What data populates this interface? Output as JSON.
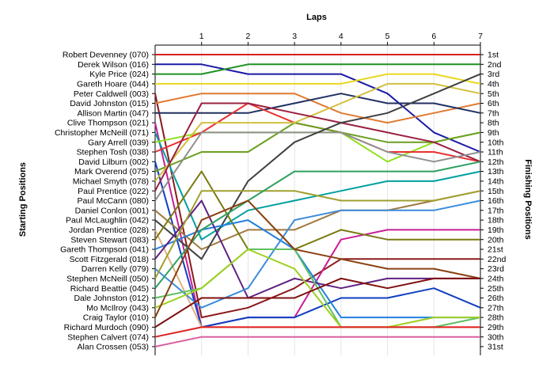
{
  "chart_data": {
    "type": "line",
    "title": "Laps",
    "ylabel_left": "Starting Positions",
    "ylabel_right": "Finishing Positions",
    "x": [
      0,
      1,
      2,
      3,
      4,
      5,
      6,
      7
    ],
    "x_tick_labels": [
      "1",
      "2",
      "3",
      "4",
      "5",
      "6",
      "7"
    ],
    "position_labels": [
      "1st",
      "2nd",
      "3rd",
      "4th",
      "5th",
      "6th",
      "7th",
      "8th",
      "9th",
      "10th",
      "11th",
      "12th",
      "13th",
      "14th",
      "15th",
      "16th",
      "17th",
      "18th",
      "19th",
      "20th",
      "21st",
      "22nd",
      "23rd",
      "24th",
      "25th",
      "26th",
      "27th",
      "28th",
      "29th",
      "30th",
      "31st"
    ],
    "grid": true,
    "series": [
      {
        "name": "Robert Devenney (070)",
        "color": "#d62020",
        "values": [
          1,
          1,
          1,
          1,
          1,
          1,
          1,
          1
        ]
      },
      {
        "name": "Derek Wilson (016)",
        "color": "#1a1aa6",
        "values": [
          2,
          2,
          3,
          3,
          3,
          5,
          9,
          11
        ]
      },
      {
        "name": "Kyle Price (024)",
        "color": "#209020",
        "values": [
          3,
          3,
          2,
          2,
          2,
          2,
          2,
          2
        ]
      },
      {
        "name": "Gareth Hoare (044)",
        "color": "#e8d820",
        "values": [
          4,
          4,
          4,
          4,
          4,
          3,
          3,
          4
        ]
      },
      {
        "name": "Peter Caldwell (003)",
        "color": "#8b1a1a",
        "values": [
          5,
          28,
          27,
          25,
          22,
          22,
          22,
          22
        ]
      },
      {
        "name": "David Johnston (015)",
        "color": "#e07a30",
        "values": [
          6,
          5,
          5,
          5,
          7,
          8,
          7,
          6
        ]
      },
      {
        "name": "Allison Martin (047)",
        "color": "#203060",
        "values": [
          7,
          7,
          7,
          6,
          5,
          6,
          6,
          7
        ]
      },
      {
        "name": "Clive Thompson (021)",
        "color": "#c81e96",
        "values": [
          8,
          29,
          28,
          28,
          20,
          19,
          19,
          19
        ]
      },
      {
        "name": "Christopher McNeill (071)",
        "color": "#00a0a0",
        "values": [
          9,
          20,
          17,
          16,
          15,
          14,
          14,
          13
        ]
      },
      {
        "name": "Gary Arrell (039)",
        "color": "#90e020",
        "values": [
          10,
          9,
          9,
          9,
          9,
          12,
          10,
          9
        ]
      },
      {
        "name": "Stephen Tosh (038)",
        "color": "#e83030",
        "values": [
          11,
          9,
          6,
          8,
          9,
          11,
          11,
          12
        ]
      },
      {
        "name": "David Lilburn (002)",
        "color": "#1040c0",
        "values": [
          12,
          29,
          28,
          28,
          26,
          26,
          25,
          27
        ]
      },
      {
        "name": "Mark Overend (075)",
        "color": "#6aa020",
        "values": [
          13,
          11,
          11,
          8,
          9,
          10,
          10,
          9
        ]
      },
      {
        "name": "Michael Smyth (078)",
        "color": "#d2c040",
        "values": [
          14,
          8,
          8,
          8,
          6,
          4,
          4,
          5
        ]
      },
      {
        "name": "Paul Prentice (022)",
        "color": "#9a2040",
        "values": [
          15,
          6,
          6,
          7,
          8,
          9,
          10,
          12
        ]
      },
      {
        "name": "Paul McCann (080)",
        "color": "#909090",
        "values": [
          16,
          9,
          9,
          9,
          9,
          11,
          12,
          11
        ]
      },
      {
        "name": "Daniel Conlon (001)",
        "color": "#a07a40",
        "values": [
          17,
          21,
          19,
          19,
          17,
          17,
          16,
          15
        ]
      },
      {
        "name": "Paul McLaughlin (042)",
        "color": "#404040",
        "values": [
          18,
          22,
          14,
          10,
          8,
          7,
          5,
          3
        ]
      },
      {
        "name": "Jordan Prentice (028)",
        "color": "#e0b080",
        "values": [
          19,
          29,
          29,
          29,
          29,
          29,
          29,
          29
        ]
      },
      {
        "name": "Steven Stewart (083)",
        "color": "#7a7a10",
        "values": [
          20,
          13,
          21,
          21,
          19,
          20,
          20,
          20
        ]
      },
      {
        "name": "Gareth Thompson (041)",
        "color": "#2080e0",
        "values": [
          21,
          19,
          18,
          21,
          28,
          28,
          28,
          28
        ]
      },
      {
        "name": "Scott Fitzgerald (018)",
        "color": "#602080",
        "values": [
          22,
          16,
          26,
          24,
          25,
          24,
          24,
          24
        ]
      },
      {
        "name": "Darren Kelly (079)",
        "color": "#3c8cdc",
        "values": [
          23,
          27,
          25,
          18,
          17,
          17,
          17,
          16
        ]
      },
      {
        "name": "Stephen McNeill (050)",
        "color": "#a0a030",
        "values": [
          24,
          15,
          15,
          15,
          16,
          16,
          16,
          15
        ]
      },
      {
        "name": "Richard Beattie (045)",
        "color": "#30a060",
        "values": [
          25,
          19,
          16,
          13,
          13,
          13,
          13,
          12
        ]
      },
      {
        "name": "Dale Johnston (012)",
        "color": "#60c060",
        "values": [
          26,
          25,
          21,
          21,
          29,
          29,
          29,
          28
        ]
      },
      {
        "name": "Mo McIlroy (043)",
        "color": "#a0d020",
        "values": [
          27,
          25,
          21,
          23,
          29,
          29,
          28,
          28
        ]
      },
      {
        "name": "Craig Taylor (010)",
        "color": "#8a4010",
        "values": [
          28,
          18,
          16,
          21,
          22,
          23,
          23,
          24
        ]
      },
      {
        "name": "Richard Murdoch (090)",
        "color": "#801010",
        "values": [
          29,
          26,
          26,
          26,
          24,
          25,
          24,
          24
        ]
      },
      {
        "name": "Stephen Calvert (074)",
        "color": "#e02020",
        "values": [
          30,
          29,
          29,
          29,
          29,
          29,
          29,
          29
        ]
      },
      {
        "name": "Alan Crossen (053)",
        "color": "#d860a0",
        "values": [
          31,
          30,
          30,
          30,
          30,
          30,
          30,
          30
        ]
      }
    ]
  }
}
